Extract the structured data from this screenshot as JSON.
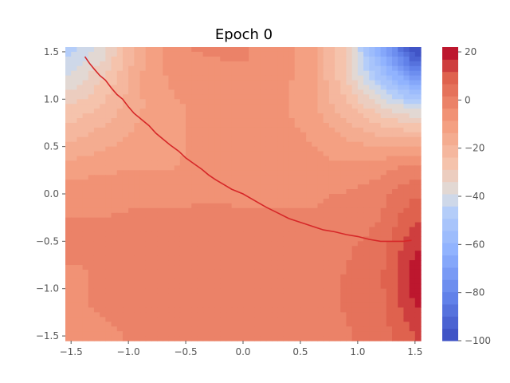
{
  "chart_data": {
    "type": "heatmap",
    "title": "Epoch 0",
    "xlabel": "",
    "ylabel": "",
    "xlim": [
      -1.55,
      1.55
    ],
    "ylim": [
      -1.55,
      1.55
    ],
    "grid": false,
    "colormap": "coolwarm",
    "x_ticks": [
      {
        "value": -1.5,
        "label": "−1.5"
      },
      {
        "value": -1.0,
        "label": "−1.0"
      },
      {
        "value": -0.5,
        "label": "−0.5"
      },
      {
        "value": 0.0,
        "label": "0.0"
      },
      {
        "value": 0.5,
        "label": "0.5"
      },
      {
        "value": 1.0,
        "label": "1.0"
      },
      {
        "value": 1.5,
        "label": "1.5"
      }
    ],
    "y_ticks": [
      {
        "value": 1.5,
        "label": "1.5"
      },
      {
        "value": 1.0,
        "label": "1.0"
      },
      {
        "value": 0.5,
        "label": "0.5"
      },
      {
        "value": 0.0,
        "label": "0.0"
      },
      {
        "value": -0.5,
        "label": "−0.5"
      },
      {
        "value": -1.0,
        "label": "−1.0"
      },
      {
        "value": -1.5,
        "label": "−1.5"
      }
    ],
    "colorbar": {
      "min": -100,
      "max": 22,
      "ticks": [
        {
          "value": 20,
          "label": "20"
        },
        {
          "value": 0,
          "label": "0"
        },
        {
          "value": -20,
          "label": "−20"
        },
        {
          "value": -40,
          "label": "−40"
        },
        {
          "value": -60,
          "label": "−60"
        },
        {
          "value": -80,
          "label": "−80"
        },
        {
          "value": -100,
          "label": "−100"
        }
      ]
    },
    "z_grid": {
      "x": [
        -1.5,
        -1.2,
        -0.9,
        -0.6,
        -0.3,
        0.0,
        0.3,
        0.6,
        0.9,
        1.2,
        1.5
      ],
      "y": [
        1.5,
        1.2,
        0.9,
        0.6,
        0.3,
        0.0,
        -0.3,
        -0.6,
        -0.9,
        -1.2,
        -1.5
      ],
      "z": [
        [
          -45,
          -35,
          -15,
          -4,
          -3,
          -3,
          -5,
          -12,
          -30,
          -65,
          -100
        ],
        [
          -38,
          -28,
          -14,
          -7,
          -5,
          -4,
          -6,
          -12,
          -28,
          -50,
          -70
        ],
        [
          -28,
          -22,
          -14,
          -10,
          -6,
          -5,
          -7,
          -12,
          -22,
          -32,
          -40
        ],
        [
          -20,
          -16,
          -12,
          -10,
          -6,
          -4,
          -6,
          -9,
          -14,
          -18,
          -20
        ],
        [
          -12,
          -10,
          -9,
          -9,
          -6,
          -4,
          -5,
          -7,
          -8,
          -6,
          -2
        ],
        [
          -5,
          -5,
          -5,
          -5,
          -4,
          -4,
          -4,
          -4,
          -3,
          0,
          6
        ],
        [
          -3,
          -3,
          -2,
          -2,
          -2,
          -3,
          -3,
          -3,
          -2,
          2,
          12
        ],
        [
          -3,
          -3,
          -2,
          -1,
          -1,
          -1,
          -1,
          -1,
          1,
          5,
          17
        ],
        [
          -4,
          -3,
          -2,
          -1,
          -1,
          -1,
          -1,
          0,
          2,
          6,
          20
        ],
        [
          -4,
          -3,
          -2,
          -2,
          -2,
          -1,
          -1,
          0,
          2,
          5,
          17
        ],
        [
          -4,
          -4,
          -3,
          -3,
          -3,
          -2,
          -1,
          0,
          1,
          4,
          12
        ]
      ]
    },
    "series": [
      {
        "type": "line",
        "color": "#d62728",
        "x": [
          -1.38,
          -1.34,
          -1.3,
          -1.25,
          -1.2,
          -1.15,
          -1.1,
          -1.05,
          -1.0,
          -0.95,
          -0.88,
          -0.82,
          -0.76,
          -0.7,
          -0.64,
          -0.56,
          -0.5,
          -0.43,
          -0.36,
          -0.3,
          -0.24,
          -0.17,
          -0.1,
          0.0,
          0.1,
          0.2,
          0.3,
          0.4,
          0.5,
          0.6,
          0.7,
          0.8,
          0.9,
          1.0,
          1.1,
          1.2,
          1.3,
          1.4,
          1.47
        ],
        "y": [
          1.45,
          1.38,
          1.32,
          1.25,
          1.2,
          1.12,
          1.05,
          1.0,
          0.92,
          0.85,
          0.78,
          0.72,
          0.64,
          0.58,
          0.52,
          0.45,
          0.38,
          0.32,
          0.26,
          0.2,
          0.15,
          0.1,
          0.05,
          0.0,
          -0.07,
          -0.14,
          -0.2,
          -0.26,
          -0.3,
          -0.34,
          -0.38,
          -0.4,
          -0.43,
          -0.45,
          -0.48,
          -0.5,
          -0.5,
          -0.5,
          -0.49
        ]
      }
    ]
  }
}
